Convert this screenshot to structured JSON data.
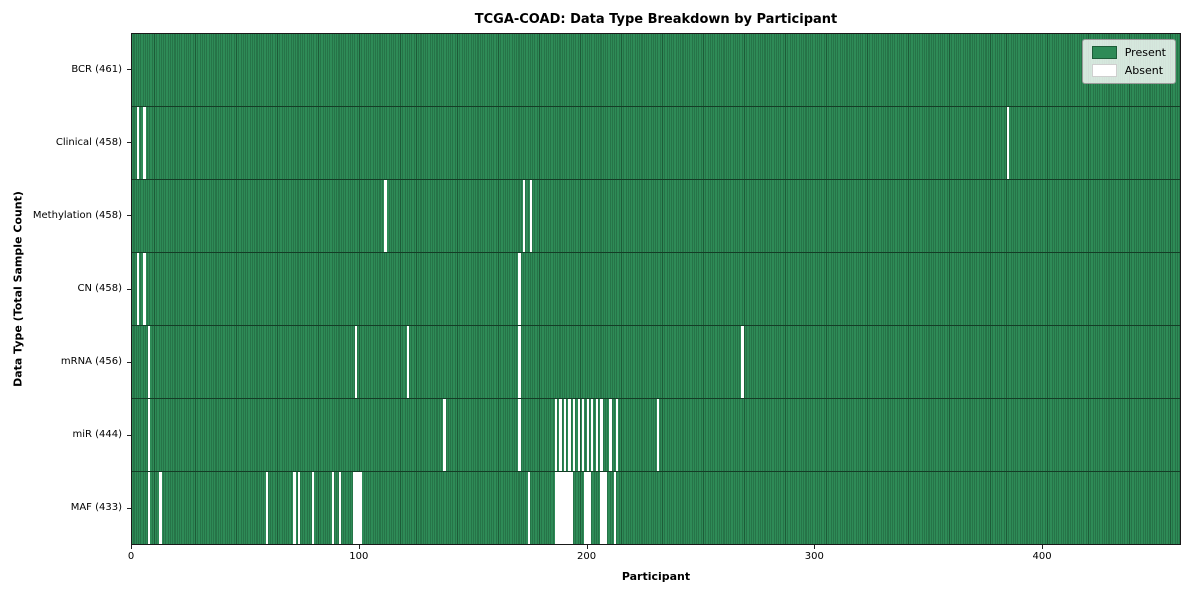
{
  "title": "TCGA-COAD: Data Type Breakdown by Participant",
  "legend": {
    "present_label": "Present",
    "absent_label": "Absent"
  },
  "colors": {
    "present": "#2e8b57",
    "present_edge": "#1d5c38",
    "absent": "#ffffff",
    "row_separator": "#143d26"
  },
  "chart_data": {
    "type": "heatmap",
    "title": "TCGA-COAD: Data Type Breakdown by Participant",
    "xlabel": "Participant",
    "ylabel": "Data Type (Total Sample Count)",
    "xlim": [
      0,
      461
    ],
    "x_ticks": [
      0,
      100,
      200,
      300,
      400
    ],
    "total_participants": 461,
    "grid": false,
    "legend_entries": [
      "Present",
      "Absent"
    ],
    "legend_position": "upper right",
    "rows": [
      {
        "data_type": "BCR",
        "label": "BCR (461)",
        "present_count": 461,
        "absent_count": 0,
        "absent_participants": []
      },
      {
        "data_type": "Clinical",
        "label": "Clinical (458)",
        "present_count": 458,
        "absent_count": 3,
        "absent_participants": [
          2,
          5,
          385
        ]
      },
      {
        "data_type": "Methylation",
        "label": "Methylation (458)",
        "present_count": 458,
        "absent_count": 3,
        "absent_participants": [
          111,
          172,
          175
        ]
      },
      {
        "data_type": "CN",
        "label": "CN (458)",
        "present_count": 458,
        "absent_count": 3,
        "absent_participants": [
          2,
          5,
          170
        ]
      },
      {
        "data_type": "mRNA",
        "label": "mRNA (456)",
        "present_count": 456,
        "absent_count": 5,
        "absent_participants": [
          7,
          98,
          121,
          170,
          268
        ]
      },
      {
        "data_type": "miR",
        "label": "miR (444)",
        "present_count": 444,
        "absent_count": 17,
        "absent_participants": [
          7,
          137,
          170,
          186,
          188,
          190,
          192,
          194,
          196,
          198,
          200,
          202,
          204,
          206,
          210,
          213,
          231
        ]
      },
      {
        "data_type": "MAF",
        "label": "MAF (433)",
        "present_count": 433,
        "absent_count": 28,
        "absent_participants": [
          7,
          12,
          59,
          71,
          73,
          79,
          88,
          91,
          97,
          98,
          99,
          100,
          174,
          186,
          187,
          188,
          189,
          190,
          191,
          192,
          193,
          199,
          200,
          201,
          206,
          207,
          208,
          212
        ]
      }
    ]
  }
}
